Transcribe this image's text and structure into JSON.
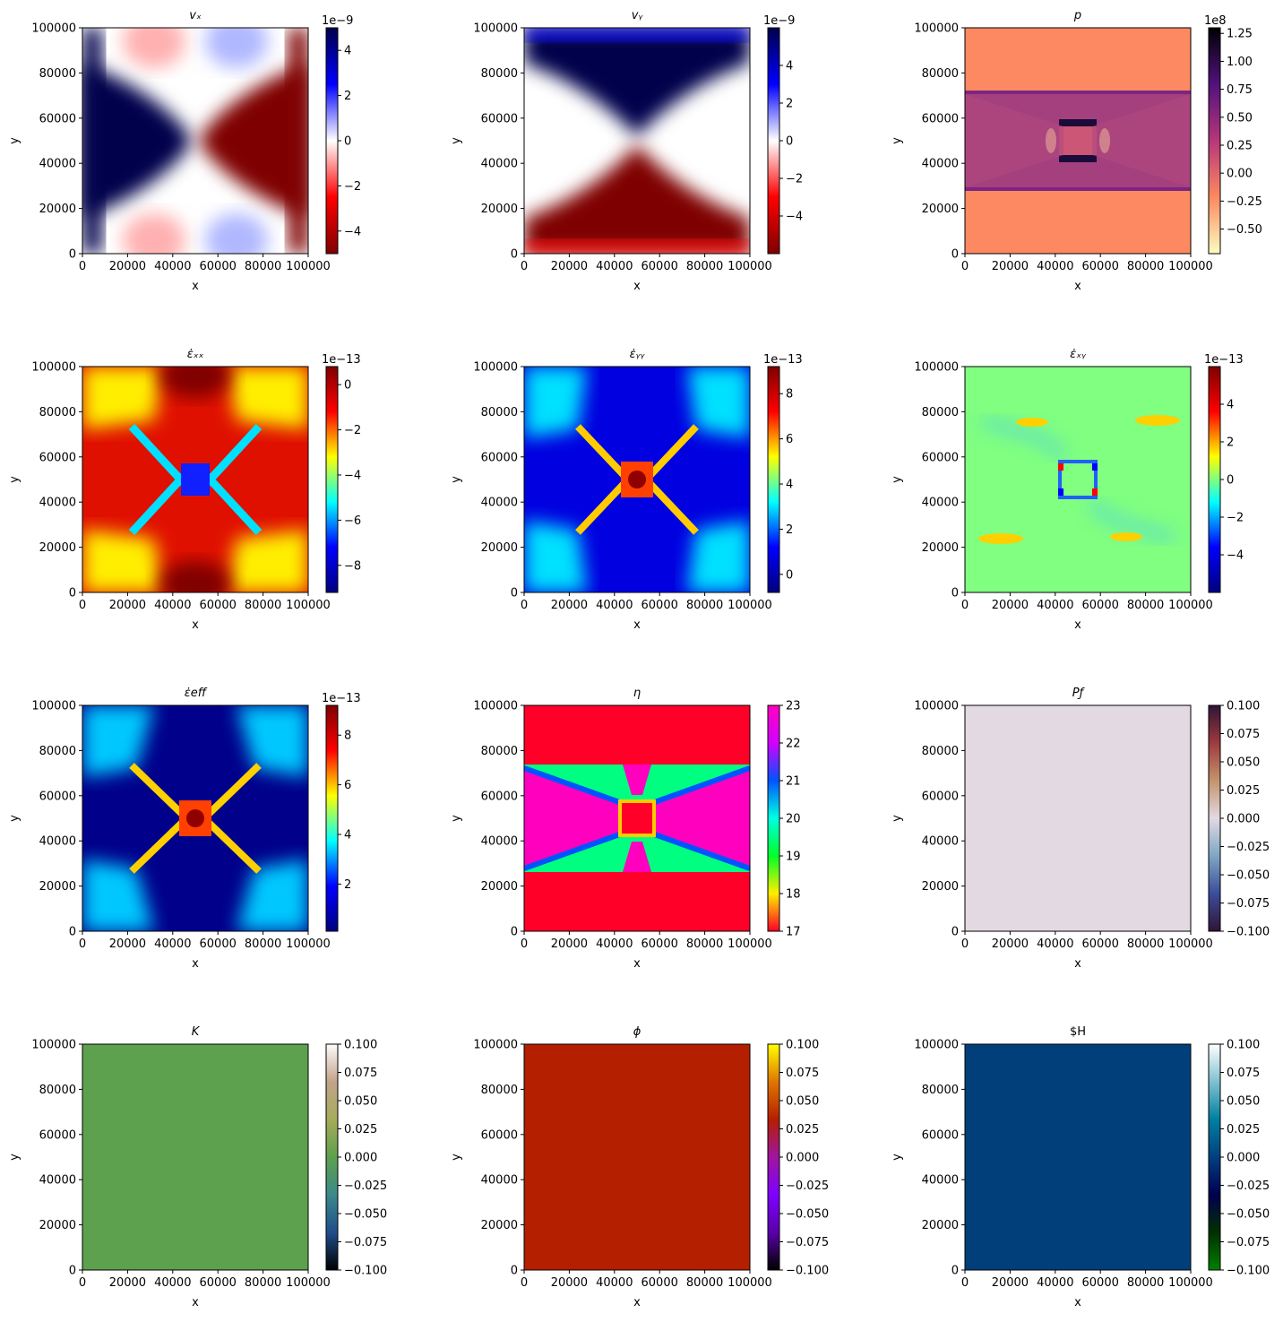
{
  "x_ticks": [
    "0",
    "20000",
    "40000",
    "60000",
    "80000",
    "100000"
  ],
  "y_ticks": [
    "0",
    "20000",
    "40000",
    "60000",
    "80000",
    "100000"
  ],
  "chart_data": [
    {
      "id": "vx",
      "type": "heatmap",
      "title": "vₓ",
      "title_italic": true,
      "xlabel": "x",
      "ylabel": "y",
      "xlim": [
        0,
        100000
      ],
      "ylim": [
        0,
        100000
      ],
      "colormap": "seismic_r",
      "colorbar_offset": "1e−9",
      "colorbar_ticks": [
        "−4",
        "−2",
        "0",
        "2",
        "4"
      ],
      "colorbar_values": [
        -4,
        -2,
        0,
        2,
        4
      ],
      "colorbar_range": [
        -5,
        5
      ],
      "colors": [
        "#7f0000",
        "#ff0000",
        "#ffffff",
        "#0000ff",
        "#00004c"
      ]
    },
    {
      "id": "vy",
      "type": "heatmap",
      "title": "vᵧ",
      "title_italic": true,
      "xlabel": "x",
      "ylabel": "y",
      "xlim": [
        0,
        100000
      ],
      "ylim": [
        0,
        100000
      ],
      "colormap": "seismic_r",
      "colorbar_offset": "1e−9",
      "colorbar_ticks": [
        "−4",
        "−2",
        "0",
        "2",
        "4"
      ],
      "colorbar_values": [
        -4,
        -2,
        0,
        2,
        4
      ],
      "colorbar_range": [
        -6,
        6
      ],
      "colors": [
        "#7f0000",
        "#ff0000",
        "#ffffff",
        "#0000ff",
        "#00004c"
      ]
    },
    {
      "id": "p",
      "type": "heatmap",
      "title": "p",
      "title_italic": true,
      "xlabel": "x",
      "ylabel": "y",
      "xlim": [
        0,
        100000
      ],
      "ylim": [
        0,
        100000
      ],
      "colormap": "magma_r",
      "colorbar_offset": "1e8",
      "colorbar_ticks": [
        "−0.50",
        "−0.25",
        "0.00",
        "0.25",
        "0.50",
        "0.75",
        "1.00",
        "1.25"
      ],
      "colorbar_values": [
        -0.5,
        -0.25,
        0,
        0.25,
        0.5,
        0.75,
        1,
        1.25
      ],
      "colorbar_range": [
        -0.72,
        1.3
      ],
      "colors": [
        "#fcfdbf",
        "#fc8961",
        "#b73779",
        "#51127c",
        "#000004"
      ]
    },
    {
      "id": "exx",
      "type": "heatmap",
      "title": "ε̇ₓₓ",
      "title_italic": true,
      "xlabel": "x",
      "ylabel": "y",
      "xlim": [
        0,
        100000
      ],
      "ylim": [
        0,
        100000
      ],
      "colormap": "jet",
      "colorbar_offset": "1e−13",
      "colorbar_ticks": [
        "−8",
        "−6",
        "−4",
        "−2",
        "0"
      ],
      "colorbar_values": [
        -8,
        -6,
        -4,
        -2,
        0
      ],
      "colorbar_range": [
        -9.2,
        0.8
      ],
      "colors": [
        "#00007f",
        "#0000ff",
        "#00ffff",
        "#ffff00",
        "#ff0000",
        "#7f0000"
      ]
    },
    {
      "id": "eyy",
      "type": "heatmap",
      "title": "ε̇ᵧᵧ",
      "title_italic": true,
      "xlabel": "x",
      "ylabel": "y",
      "xlim": [
        0,
        100000
      ],
      "ylim": [
        0,
        100000
      ],
      "colormap": "jet",
      "colorbar_offset": "1e−13",
      "colorbar_ticks": [
        "0",
        "2",
        "4",
        "6",
        "8"
      ],
      "colorbar_values": [
        0,
        2,
        4,
        6,
        8
      ],
      "colorbar_range": [
        -0.8,
        9.2
      ],
      "colors": [
        "#00007f",
        "#0000ff",
        "#00ffff",
        "#ffff00",
        "#ff0000",
        "#7f0000"
      ]
    },
    {
      "id": "exy",
      "type": "heatmap",
      "title": "ε̇ₓᵧ",
      "title_italic": true,
      "xlabel": "x",
      "ylabel": "y",
      "xlim": [
        0,
        100000
      ],
      "ylim": [
        0,
        100000
      ],
      "colormap": "jet",
      "colorbar_offset": "1e−13",
      "colorbar_ticks": [
        "−4",
        "−2",
        "0",
        "2",
        "4"
      ],
      "colorbar_values": [
        -4,
        -2,
        0,
        2,
        4
      ],
      "colorbar_range": [
        -6,
        6
      ],
      "colors": [
        "#00007f",
        "#0000ff",
        "#00ffff",
        "#ffff00",
        "#ff0000",
        "#7f0000"
      ]
    },
    {
      "id": "eeff",
      "type": "heatmap",
      "title": "ε̇eff",
      "title_italic": true,
      "xlabel": "x",
      "ylabel": "y",
      "xlim": [
        0,
        100000
      ],
      "ylim": [
        0,
        100000
      ],
      "colormap": "jet",
      "colorbar_offset": "1e−13",
      "colorbar_ticks": [
        "2",
        "4",
        "6",
        "8"
      ],
      "colorbar_values": [
        2,
        4,
        6,
        8
      ],
      "colorbar_range": [
        0.1,
        9.2
      ],
      "colors": [
        "#00007f",
        "#0000ff",
        "#00ffff",
        "#ffff00",
        "#ff0000",
        "#7f0000"
      ]
    },
    {
      "id": "eta",
      "type": "heatmap",
      "title": "η",
      "title_italic": true,
      "xlabel": "x",
      "ylabel": "y",
      "xlim": [
        0,
        100000
      ],
      "ylim": [
        0,
        100000
      ],
      "colormap": "gist_rainbow",
      "colorbar_offset": "",
      "colorbar_ticks": [
        "17",
        "18",
        "19",
        "20",
        "21",
        "22",
        "23"
      ],
      "colorbar_values": [
        17,
        18,
        19,
        20,
        21,
        22,
        23
      ],
      "colorbar_range": [
        17,
        23
      ],
      "colors": [
        "#ff0029",
        "#ffee00",
        "#00ff27",
        "#00ffe3",
        "#0054ff",
        "#d200ff",
        "#ff00bf"
      ]
    },
    {
      "id": "pf",
      "type": "heatmap",
      "title": "Pƒ",
      "title_italic": true,
      "xlabel": "x",
      "ylabel": "y",
      "xlim": [
        0,
        100000
      ],
      "ylim": [
        0,
        100000
      ],
      "colormap": "twilight_shifted",
      "colorbar_offset": "",
      "colorbar_ticks": [
        "−0.100",
        "−0.075",
        "−0.050",
        "−0.025",
        "0.000",
        "0.025",
        "0.050",
        "0.075",
        "0.100"
      ],
      "colorbar_values": [
        -0.1,
        -0.075,
        -0.05,
        -0.025,
        0,
        0.025,
        0.05,
        0.075,
        0.1
      ],
      "colorbar_range": [
        -0.1,
        0.1
      ],
      "colors": [
        "#301437",
        "#3b4d9a",
        "#7ea6c4",
        "#e2d9e2",
        "#c4936d",
        "#9f3a3e",
        "#301437"
      ]
    },
    {
      "id": "K",
      "type": "heatmap",
      "title": "K",
      "title_italic": true,
      "xlabel": "x",
      "ylabel": "y",
      "xlim": [
        0,
        100000
      ],
      "ylim": [
        0,
        100000
      ],
      "colormap": "gist_earth",
      "colorbar_offset": "",
      "colorbar_ticks": [
        "−0.100",
        "−0.075",
        "−0.050",
        "−0.025",
        "0.000",
        "0.025",
        "0.050",
        "0.075",
        "0.100"
      ],
      "colorbar_values": [
        -0.1,
        -0.075,
        -0.05,
        -0.025,
        0,
        0.025,
        0.05,
        0.075,
        0.1
      ],
      "colorbar_range": [
        -0.1,
        0.1
      ],
      "colors": [
        "#000000",
        "#1f4e8b",
        "#3b8a8a",
        "#5da04d",
        "#a6ac59",
        "#c2a38a",
        "#fdfbfb"
      ]
    },
    {
      "id": "phi",
      "type": "heatmap",
      "title": "ϕ",
      "title_italic": true,
      "xlabel": "x",
      "ylabel": "y",
      "xlim": [
        0,
        100000
      ],
      "ylim": [
        0,
        100000
      ],
      "colormap": "gnuplot",
      "colorbar_offset": "",
      "colorbar_ticks": [
        "−0.100",
        "−0.075",
        "−0.050",
        "−0.025",
        "0.000",
        "0.025",
        "0.050",
        "0.075",
        "0.100"
      ],
      "colorbar_values": [
        -0.1,
        -0.075,
        -0.05,
        -0.025,
        0,
        0.025,
        0.05,
        0.075,
        0.1
      ],
      "colorbar_range": [
        -0.1,
        0.1
      ],
      "colors": [
        "#000000",
        "#5a00a8",
        "#7f00ff",
        "#a0159e",
        "#b41f00",
        "#e07600",
        "#ffff00"
      ]
    },
    {
      "id": "H",
      "type": "heatmap",
      "title": "$H",
      "title_italic": false,
      "xlabel": "x",
      "ylabel": "y",
      "xlim": [
        0,
        100000
      ],
      "ylim": [
        0,
        100000
      ],
      "colormap": "ocean",
      "colorbar_offset": "",
      "colorbar_ticks": [
        "−0.100",
        "−0.075",
        "−0.050",
        "−0.025",
        "0.000",
        "0.025",
        "0.050",
        "0.075",
        "0.100"
      ],
      "colorbar_values": [
        -0.1,
        -0.075,
        -0.05,
        -0.025,
        0,
        0.025,
        0.05,
        0.075,
        0.1
      ],
      "colorbar_range": [
        -0.1,
        0.1
      ],
      "colors": [
        "#008000",
        "#003000",
        "#000050",
        "#004080",
        "#0080a0",
        "#80c0d0",
        "#ffffff"
      ]
    }
  ]
}
